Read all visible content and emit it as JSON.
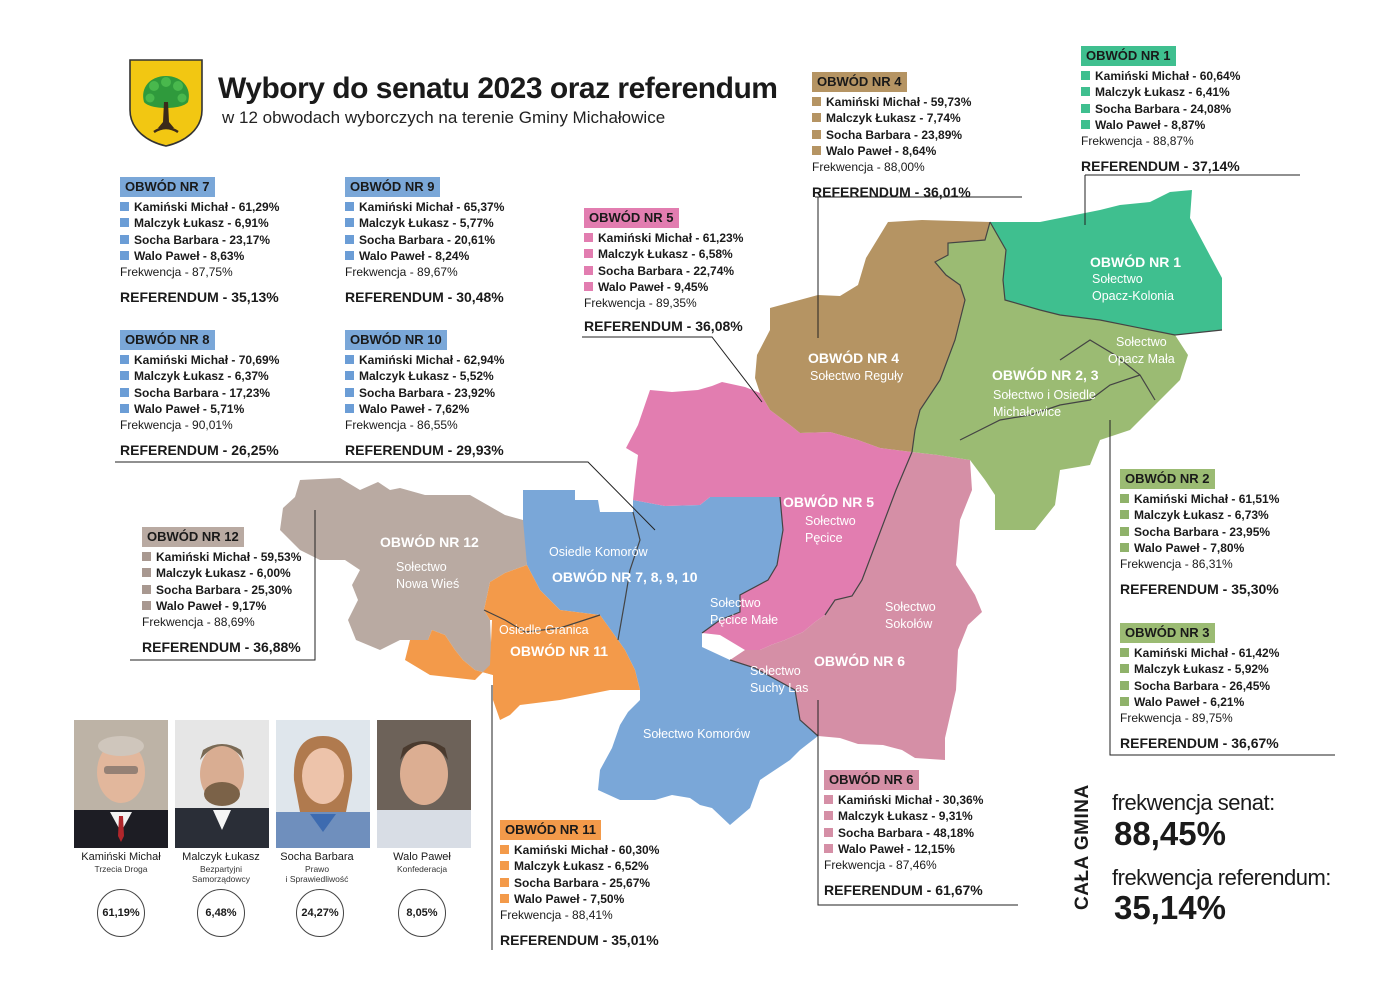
{
  "header": {
    "title": "Wybory do senatu 2023 oraz referendum",
    "subtitle": "w 12 obwodach wyborczych na terenie Gminy Michałowice"
  },
  "labels": {
    "frekwencja_prefix": "Frekwencja - ",
    "referendum_prefix": "REFERENDUM - "
  },
  "colors": {
    "obwod_7_8_9_10": "#7aa7d8",
    "obwod_1": "#3fbf8f",
    "obwod_4": "#b59463",
    "obwod_5": "#e27db0",
    "obwod_12": "#b9aaa2",
    "obwod_2_3": "#9bbb73",
    "obwod_6": "#d58fa6",
    "obwod_11": "#f39a4a"
  },
  "districts": {
    "o7": {
      "header": "OBWÓD NR 7",
      "results": [
        "Kamiński Michał - 61,29%",
        "Malczyk Łukasz - 6,91%",
        "Socha Barbara - 23,17%",
        "Walo Paweł - 8,63%"
      ],
      "frekwencja": "87,75%",
      "referendum": "35,13%"
    },
    "o9": {
      "header": "OBWÓD NR 9",
      "results": [
        "Kamiński Michał - 65,37%",
        "Malczyk Łukasz - 5,77%",
        "Socha Barbara - 20,61%",
        "Walo Paweł - 8,24%"
      ],
      "frekwencja": "89,67%",
      "referendum": "30,48%"
    },
    "o8": {
      "header": "OBWÓD NR 8",
      "results": [
        "Kamiński Michał - 70,69%",
        "Malczyk Łukasz - 6,37%",
        "Socha Barbara - 17,23%",
        "Walo Paweł - 5,71%"
      ],
      "frekwencja": "90,01%",
      "referendum": "26,25%"
    },
    "o10": {
      "header": "OBWÓD NR 10",
      "results": [
        "Kamiński Michał - 62,94%",
        "Malczyk Łukasz - 5,52%",
        "Socha Barbara - 23,92%",
        "Walo Paweł - 7,62%"
      ],
      "frekwencja": "86,55%",
      "referendum": "29,93%"
    },
    "o5": {
      "header": "OBWÓD NR 5",
      "results": [
        "Kamiński Michał - 61,23%",
        "Malczyk Łukasz - 6,58%",
        "Socha Barbara - 22,74%",
        "Walo Paweł - 9,45%"
      ],
      "frekwencja": "89,35%",
      "referendum": "36,08%"
    },
    "o4": {
      "header": "OBWÓD NR 4",
      "results": [
        "Kamiński Michał - 59,73%",
        "Malczyk Łukasz - 7,74%",
        "Socha Barbara - 23,89%",
        "Walo Paweł - 8,64%"
      ],
      "frekwencja": "88,00%",
      "referendum": "36,01%"
    },
    "o1": {
      "header": "OBWÓD NR 1",
      "results": [
        "Kamiński Michał - 60,64%",
        "Malczyk Łukasz - 6,41%",
        "Socha Barbara - 24,08%",
        "Walo Paweł - 8,87%"
      ],
      "frekwencja": "88,87%",
      "referendum": "37,14%"
    },
    "o12": {
      "header": "OBWÓD NR 12",
      "results": [
        "Kamiński Michał - 59,53%",
        "Malczyk Łukasz - 6,00%",
        "Socha Barbara - 25,30%",
        "Walo Paweł - 9,17%"
      ],
      "frekwencja": "88,69%",
      "referendum": "36,88%"
    },
    "o2": {
      "header": "OBWÓD NR 2",
      "results": [
        "Kamiński Michał - 61,51%",
        "Malczyk Łukasz - 6,73%",
        "Socha Barbara - 23,95%",
        "Walo Paweł - 7,80%"
      ],
      "frekwencja": "86,31%",
      "referendum": "35,30%"
    },
    "o3": {
      "header": "OBWÓD NR 3",
      "results": [
        "Kamiński Michał - 61,42%",
        "Malczyk Łukasz - 5,92%",
        "Socha Barbara - 26,45%",
        "Walo Paweł - 6,21%"
      ],
      "frekwencja": "89,75%",
      "referendum": "36,67%"
    },
    "o6": {
      "header": "OBWÓD NR 6",
      "results": [
        "Kamiński Michał - 30,36%",
        "Malczyk Łukasz - 9,31%",
        "Socha Barbara  - 48,18%",
        "Walo Paweł - 12,15%"
      ],
      "frekwencja": "87,46%",
      "referendum": "61,67%"
    },
    "o11": {
      "header": "OBWÓD NR 11",
      "results": [
        "Kamiński Michał - 60,30%",
        "Malczyk Łukasz - 6,52%",
        "Socha Barbara - 25,67%",
        "Walo Paweł - 7,50%"
      ],
      "frekwencja": "88,41%",
      "referendum": "35,01%"
    }
  },
  "map_labels": {
    "o1": {
      "bold": "OBWÓD NR 1",
      "normal": [
        "Sołectwo",
        "Opacz-Kolonia"
      ]
    },
    "o4": {
      "bold": "OBWÓD NR 4",
      "normal": [
        "Sołectwo Reguły"
      ]
    },
    "opacz_mala": [
      "Sołectwo",
      "Opacz Mała"
    ],
    "o23": {
      "bold": "OBWÓD NR 2, 3",
      "normal": [
        "Sołectwo i Osiedle",
        "Michałowice"
      ]
    },
    "o5": {
      "bold": "OBWÓD NR 5",
      "normal": [
        "Sołectwo",
        "Pęcice"
      ]
    },
    "o12": {
      "bold": "OBWÓD NR 12",
      "normal": [
        "Sołectwo",
        "Nowa Wieś"
      ]
    },
    "komorow_osiedle": "Osiedle Komorów",
    "o78910": "OBWÓD NR 7, 8, 9, 10",
    "pecice_male": [
      "Sołectwo",
      "Pęcice Małe"
    ],
    "sokolow": [
      "Sołectwo",
      "Sokołów"
    ],
    "o11": {
      "normal": "Osiedle Granica",
      "bold": "OBWÓD NR 11"
    },
    "suchy_las": [
      "Sołectwo",
      "Suchy Las"
    ],
    "o6": "OBWÓD NR 6",
    "komorow_solectwo": "Sołectwo Komorów"
  },
  "candidates": [
    {
      "name": "Kamiński Michał",
      "party": [
        "Trzecia Droga"
      ],
      "result": "61,19%"
    },
    {
      "name": "Malczyk Łukasz",
      "party": [
        "Bezpartyjni",
        "Samorządowcy"
      ],
      "result": "6,48%"
    },
    {
      "name": "Socha Barbara",
      "party": [
        "Prawo",
        "i Sprawiedliwość"
      ],
      "result": "24,27%"
    },
    {
      "name": "Walo Paweł",
      "party": [
        "Konfederacja"
      ],
      "result": "8,05%"
    }
  ],
  "totals": {
    "side_label": "CAŁA GMINA",
    "senat_label": "frekwencja senat:",
    "senat_value": "88,45%",
    "referendum_label": "frekwencja referendum:",
    "referendum_value": "35,14%"
  }
}
